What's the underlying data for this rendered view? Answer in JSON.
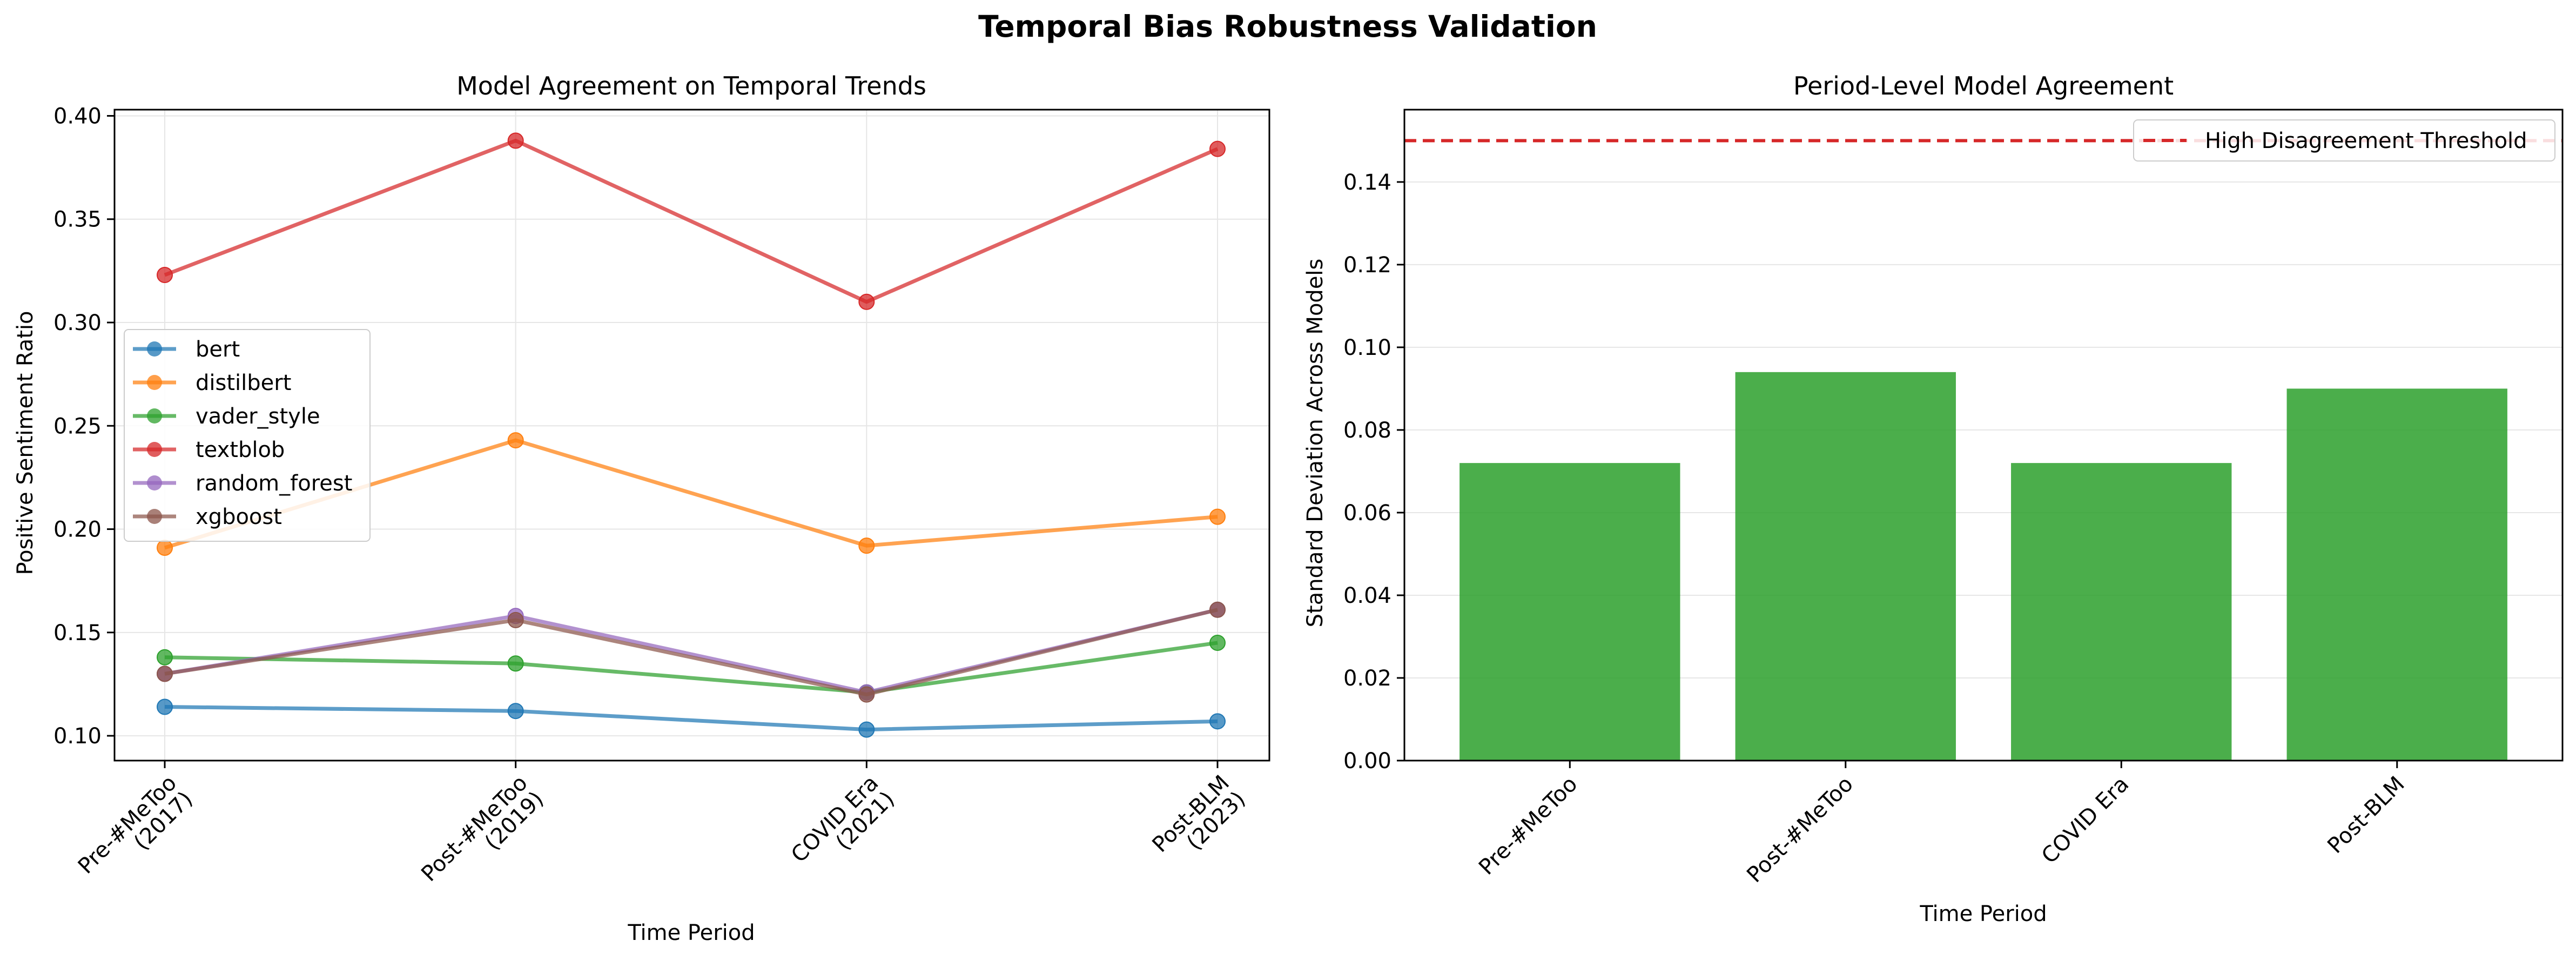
{
  "figure": {
    "title": "Temporal Bias Robustness Validation"
  },
  "chart_data": [
    {
      "type": "line",
      "title": "Model Agreement on Temporal Trends",
      "xlabel": "Time Period",
      "ylabel": "Positive Sentiment Ratio",
      "categories": [
        [
          "Pre-#MeToo",
          "(2017)"
        ],
        [
          "Post-#MeToo",
          "(2019)"
        ],
        [
          "COVID Era",
          "(2021)"
        ],
        [
          "Post-BLM",
          "(2023)"
        ]
      ],
      "ylim": [
        0.088,
        0.403
      ],
      "yticks": [
        "0.10",
        "0.15",
        "0.20",
        "0.25",
        "0.30",
        "0.35",
        "0.40"
      ],
      "grid": true,
      "legend": "center-left",
      "series": [
        {
          "name": "bert",
          "color": "#1f77b4",
          "values": [
            0.114,
            0.112,
            0.103,
            0.107
          ]
        },
        {
          "name": "distilbert",
          "color": "#ff7f0e",
          "values": [
            0.191,
            0.243,
            0.192,
            0.206
          ]
        },
        {
          "name": "vader_style",
          "color": "#2ca02c",
          "values": [
            0.138,
            0.135,
            0.121,
            0.145
          ]
        },
        {
          "name": "textblob",
          "color": "#d62728",
          "values": [
            0.323,
            0.388,
            0.31,
            0.384
          ]
        },
        {
          "name": "random_forest",
          "color": "#9467bd",
          "values": [
            0.13,
            0.158,
            0.121,
            0.161
          ]
        },
        {
          "name": "xgboost",
          "color": "#8c564b",
          "values": [
            0.13,
            0.156,
            0.12,
            0.161
          ]
        }
      ]
    },
    {
      "type": "bar",
      "title": "Period-Level Model Agreement",
      "xlabel": "Time Period",
      "ylabel": "Standard Deviation Across Models",
      "categories": [
        "Pre-#MeToo",
        "Post-#MeToo",
        "COVID Era",
        "Post-BLM"
      ],
      "values": [
        0.072,
        0.094,
        0.072,
        0.09
      ],
      "bar_color": "#2ca02c",
      "ylim": [
        0,
        0.1575
      ],
      "yticks": [
        "0.00",
        "0.02",
        "0.04",
        "0.06",
        "0.08",
        "0.10",
        "0.12",
        "0.14"
      ],
      "grid": true,
      "legend": "top-right",
      "threshold": {
        "name": "High Disagreement Threshold",
        "value": 0.15,
        "color": "#d62728"
      }
    }
  ]
}
